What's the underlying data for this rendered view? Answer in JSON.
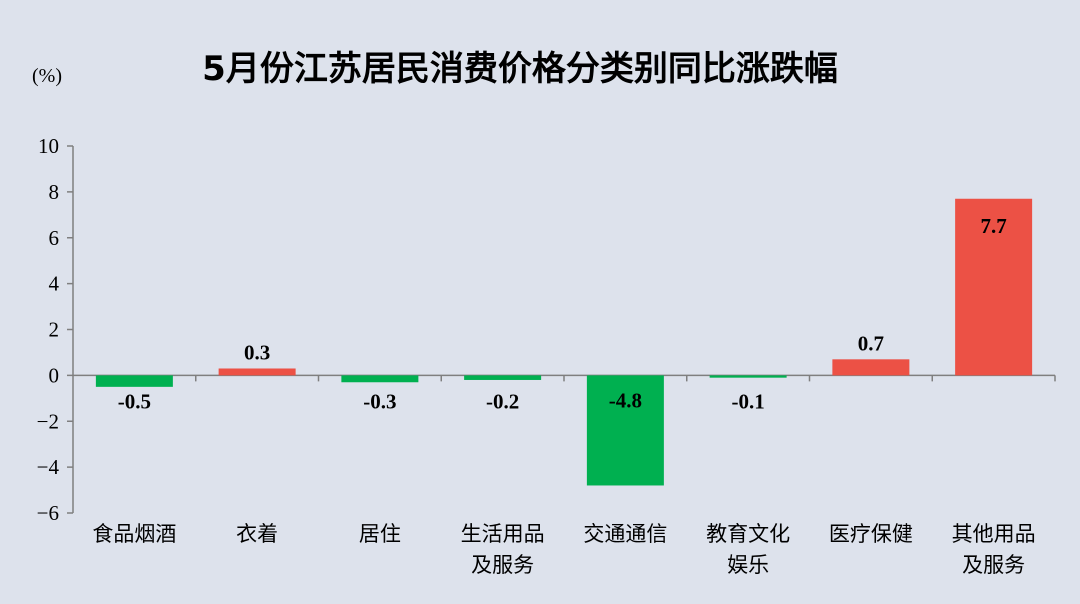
{
  "chart_data": {
    "type": "bar",
    "title": "5月份江苏居民消费价格分类别同比涨跌幅",
    "ylabel": "(%)",
    "xlabel": "",
    "ylim": [
      -6,
      10
    ],
    "yticks": [
      "10",
      "8",
      "6",
      "4",
      "2",
      "0",
      "−2",
      "−4",
      "−6"
    ],
    "ytick_values": [
      10,
      8,
      6,
      4,
      2,
      0,
      -2,
      -4,
      -6
    ],
    "categories": [
      [
        "食品烟酒"
      ],
      [
        "衣着"
      ],
      [
        "居住"
      ],
      [
        "生活用品",
        "及服务"
      ],
      [
        "交通通信"
      ],
      [
        "教育文化",
        "娱乐"
      ],
      [
        "医疗保健"
      ],
      [
        "其他用品",
        "及服务"
      ]
    ],
    "values": [
      -0.5,
      0.3,
      -0.3,
      -0.2,
      -4.8,
      -0.1,
      0.7,
      7.7
    ],
    "data_labels": [
      "-0.5",
      "0.3",
      "-0.3",
      "-0.2",
      "-4.8",
      "-0.1",
      "0.7",
      "7.7"
    ],
    "colors": {
      "positive": "#ec5145",
      "negative": "#00b050",
      "axis": "#7f7f7f"
    },
    "grid": false,
    "legend": "none"
  }
}
